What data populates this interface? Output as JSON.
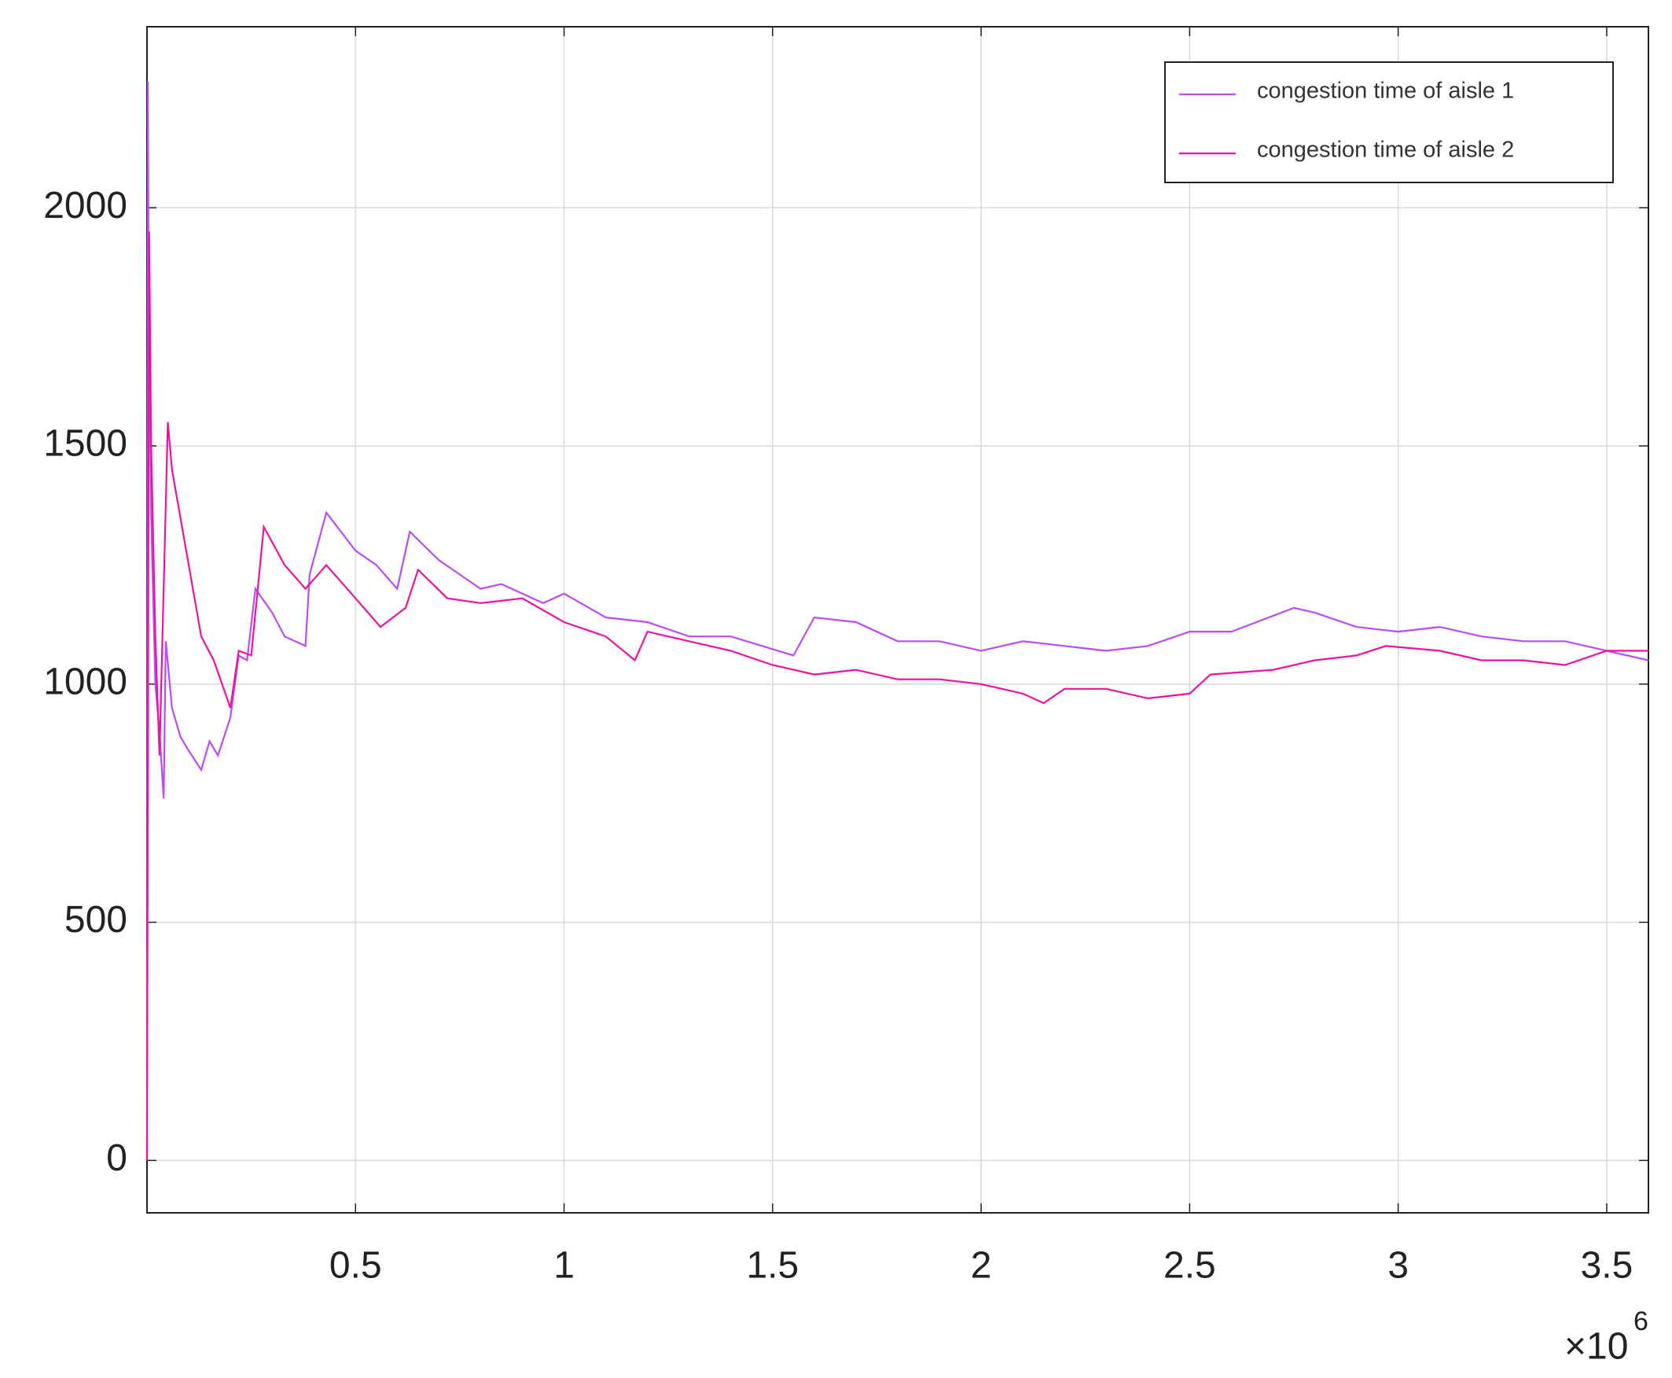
{
  "chart_data": {
    "type": "line",
    "x_multiplier": "×10",
    "x_multiplier_exponent": "6",
    "xlim": [
      0,
      3.6
    ],
    "xticks": [
      0.5,
      1,
      1.5,
      2,
      2.5,
      3,
      3.5
    ],
    "ylim": [
      -110,
      2380
    ],
    "yticks": [
      0,
      500,
      1000,
      1500,
      2000
    ],
    "grid": true,
    "legend": "upper right",
    "series": [
      {
        "name": "congestion time of aisle 1",
        "color": "#b84cf5",
        "x": [
          0,
          0.002,
          0.004,
          0.01,
          0.02,
          0.03,
          0.04,
          0.045,
          0.06,
          0.08,
          0.1,
          0.13,
          0.15,
          0.17,
          0.2,
          0.22,
          0.24,
          0.26,
          0.3,
          0.33,
          0.38,
          0.39,
          0.43,
          0.5,
          0.55,
          0.6,
          0.63,
          0.7,
          0.8,
          0.85,
          0.95,
          1.0,
          1.1,
          1.2,
          1.3,
          1.4,
          1.55,
          1.6,
          1.7,
          1.8,
          1.9,
          2.0,
          2.1,
          2.2,
          2.3,
          2.4,
          2.5,
          2.6,
          2.75,
          2.8,
          2.9,
          3.0,
          3.1,
          3.2,
          3.3,
          3.4,
          3.5,
          3.6
        ],
        "values": [
          0,
          2265,
          1800,
          1350,
          1000,
          900,
          760,
          1090,
          950,
          890,
          860,
          820,
          880,
          850,
          930,
          1060,
          1050,
          1200,
          1150,
          1100,
          1080,
          1230,
          1360,
          1280,
          1250,
          1200,
          1320,
          1260,
          1200,
          1210,
          1170,
          1190,
          1140,
          1130,
          1100,
          1100,
          1060,
          1140,
          1130,
          1090,
          1090,
          1070,
          1090,
          1080,
          1070,
          1080,
          1110,
          1110,
          1160,
          1150,
          1120,
          1110,
          1120,
          1100,
          1090,
          1090,
          1070,
          1050
        ]
      },
      {
        "name": "congestion time of aisle 2",
        "color": "#ec139f",
        "x": [
          0,
          0.005,
          0.01,
          0.02,
          0.03,
          0.05,
          0.06,
          0.1,
          0.13,
          0.16,
          0.2,
          0.22,
          0.25,
          0.28,
          0.33,
          0.38,
          0.43,
          0.5,
          0.56,
          0.62,
          0.65,
          0.72,
          0.8,
          0.9,
          1.0,
          1.1,
          1.17,
          1.2,
          1.3,
          1.4,
          1.5,
          1.6,
          1.7,
          1.8,
          1.9,
          2.0,
          2.1,
          2.15,
          2.2,
          2.3,
          2.4,
          2.5,
          2.55,
          2.7,
          2.8,
          2.9,
          2.97,
          3.1,
          3.2,
          3.3,
          3.4,
          3.5,
          3.6
        ],
        "values": [
          0,
          1950,
          1500,
          1100,
          850,
          1550,
          1450,
          1250,
          1100,
          1050,
          950,
          1070,
          1060,
          1330,
          1250,
          1200,
          1250,
          1180,
          1120,
          1160,
          1240,
          1180,
          1170,
          1180,
          1130,
          1100,
          1050,
          1110,
          1090,
          1070,
          1040,
          1020,
          1030,
          1010,
          1010,
          1000,
          980,
          960,
          990,
          990,
          970,
          980,
          1020,
          1030,
          1050,
          1060,
          1080,
          1070,
          1050,
          1050,
          1040,
          1070,
          1070
        ]
      }
    ]
  }
}
